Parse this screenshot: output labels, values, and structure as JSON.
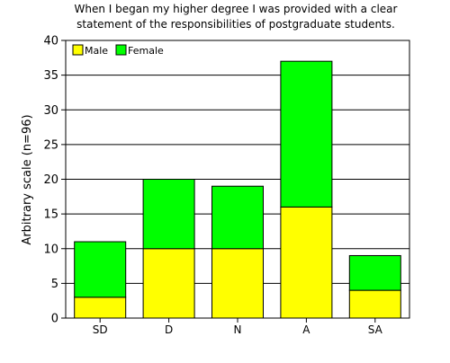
{
  "chart_data": {
    "type": "bar",
    "stacked": true,
    "title_lines": [
      "When I began my higher degree I was provided with a clear",
      "statement of the responsibilities of postgraduate students."
    ],
    "ylabel": "Arbitrary scale (n=96)",
    "xlabel": "",
    "categories": [
      "SD",
      "D",
      "N",
      "A",
      "SA"
    ],
    "series": [
      {
        "name": "Male",
        "color": "#ffff00",
        "values": [
          3,
          10,
          10,
          16,
          4
        ]
      },
      {
        "name": "Female",
        "color": "#00ff00",
        "values": [
          8,
          10,
          9,
          21,
          5
        ]
      }
    ],
    "ylim": [
      0,
      40
    ],
    "yticks": [
      0,
      5,
      10,
      15,
      20,
      25,
      30,
      35,
      40
    ],
    "grid": true,
    "legend_position": "top-left"
  }
}
